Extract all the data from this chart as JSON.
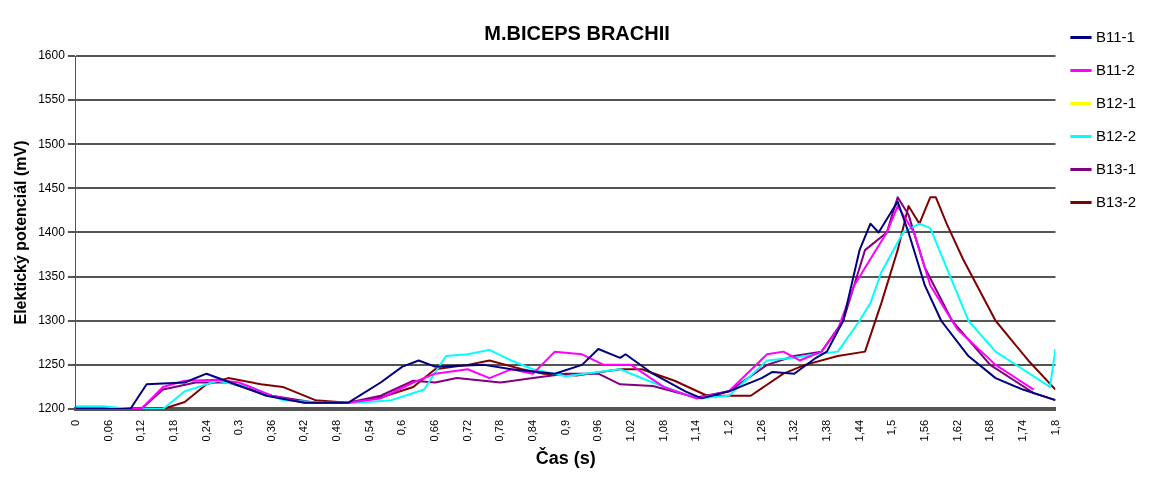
{
  "chart_data": {
    "type": "line",
    "title": "M.BICEPS BRACHII",
    "xlabel": "Čas (s)",
    "ylabel": "Elektický potenciál (mV)",
    "xlim": [
      0,
      1.8
    ],
    "xticks": [
      0,
      {
        "value": 0.06,
        "label": "0,06"
      },
      {
        "value": 0.12,
        "label": "0,12"
      },
      {
        "value": 0.18,
        "label": "0,18"
      },
      {
        "value": 0.24,
        "label": "0,24"
      },
      {
        "value": 0.3,
        "label": "0,3"
      },
      {
        "value": 0.36,
        "label": "0,36"
      },
      {
        "value": 0.42,
        "label": "0,42"
      },
      {
        "value": 0.48,
        "label": "0,48"
      },
      {
        "value": 0.54,
        "label": "0,54"
      },
      {
        "value": 0.6,
        "label": "0,6"
      },
      {
        "value": 0.66,
        "label": "0,66"
      },
      {
        "value": 0.72,
        "label": "0,72"
      },
      {
        "value": 0.78,
        "label": "0,78"
      },
      {
        "value": 0.84,
        "label": "0,84"
      },
      {
        "value": 0.9,
        "label": "0,9"
      },
      {
        "value": 0.96,
        "label": "0,96"
      },
      {
        "value": 1.02,
        "label": "1,02"
      },
      {
        "value": 1.08,
        "label": "1,08"
      },
      {
        "value": 1.14,
        "label": "1,14"
      },
      {
        "value": 1.2,
        "label": "1,2"
      },
      {
        "value": 1.26,
        "label": "1,26"
      },
      {
        "value": 1.32,
        "label": "1,32"
      },
      {
        "value": 1.38,
        "label": "1,38"
      },
      {
        "value": 1.44,
        "label": "1,44"
      },
      {
        "value": 1.5,
        "label": "1,5"
      },
      {
        "value": 1.56,
        "label": "1,56"
      },
      {
        "value": 1.62,
        "label": "1,62"
      },
      {
        "value": 1.68,
        "label": "1,68"
      },
      {
        "value": 1.74,
        "label": "1,74"
      },
      {
        "value": 1.8,
        "label": "1,8"
      }
    ],
    "ylim": [
      1200,
      1600
    ],
    "yticks": [
      1200,
      1250,
      1300,
      1350,
      1400,
      1450,
      1500,
      1550,
      1600
    ],
    "grid": "y",
    "legend": "right",
    "marker": "none",
    "line_style": "solid",
    "series": [
      {
        "name": "B11-1",
        "color": "#000080",
        "x": [
          0,
          0.1,
          0.13,
          0.2,
          0.24,
          0.35,
          0.42,
          0.5,
          0.56,
          0.6,
          0.63,
          0.66,
          0.75,
          0.8,
          0.88,
          0.93,
          0.96,
          1.0,
          1.01,
          1.06,
          1.12,
          1.15,
          1.2,
          1.26,
          1.28,
          1.32,
          1.36,
          1.38,
          1.41,
          1.44,
          1.46,
          1.475,
          1.49,
          1.51,
          1.53,
          1.56,
          1.59,
          1.64,
          1.69,
          1.74,
          1.8
        ],
        "values": [
          1200,
          1200,
          1228,
          1230,
          1240,
          1215,
          1207,
          1207,
          1230,
          1248,
          1255,
          1248,
          1250,
          1245,
          1240,
          1250,
          1268,
          1258,
          1262,
          1240,
          1220,
          1212,
          1220,
          1235,
          1242,
          1240,
          1258,
          1265,
          1300,
          1380,
          1410,
          1400,
          1415,
          1435,
          1400,
          1340,
          1300,
          1260,
          1235,
          1222,
          1210
        ]
      },
      {
        "name": "B11-2",
        "color": "#ff00ff",
        "x": [
          0,
          0.12,
          0.16,
          0.2,
          0.26,
          0.3,
          0.36,
          0.42,
          0.5,
          0.56,
          0.62,
          0.66,
          0.72,
          0.76,
          0.8,
          0.84,
          0.88,
          0.93,
          0.97,
          1.02,
          1.08,
          1.14,
          1.2,
          1.27,
          1.3,
          1.33,
          1.37,
          1.4,
          1.43,
          1.46,
          1.49,
          1.51,
          1.54,
          1.57,
          1.62,
          1.69,
          1.76
        ],
        "values": [
          1200,
          1200,
          1225,
          1232,
          1233,
          1230,
          1215,
          1207,
          1207,
          1212,
          1230,
          1240,
          1245,
          1235,
          1245,
          1240,
          1265,
          1262,
          1250,
          1250,
          1225,
          1212,
          1220,
          1262,
          1265,
          1255,
          1265,
          1290,
          1340,
          1370,
          1400,
          1430,
          1400,
          1340,
          1290,
          1250,
          1222
        ]
      },
      {
        "name": "B12-1",
        "color": "#ffff00"
      },
      {
        "name": "B12-2",
        "color": "#00ffff",
        "x": [
          0,
          0.05,
          0.1,
          0.16,
          0.2,
          0.26,
          0.32,
          0.38,
          0.46,
          0.52,
          0.58,
          0.64,
          0.68,
          0.72,
          0.76,
          0.8,
          0.84,
          0.9,
          0.96,
          1.0,
          1.06,
          1.14,
          1.2,
          1.27,
          1.32,
          1.36,
          1.4,
          1.44,
          1.46,
          1.48,
          1.52,
          1.55,
          1.57,
          1.6,
          1.64,
          1.69,
          1.74,
          1.79,
          1.8
        ],
        "values": [
          1203,
          1203,
          1200,
          1200,
          1220,
          1232,
          1225,
          1210,
          1207,
          1207,
          1210,
          1222,
          1260,
          1262,
          1267,
          1255,
          1245,
          1237,
          1242,
          1245,
          1230,
          1212,
          1215,
          1255,
          1258,
          1262,
          1265,
          1300,
          1320,
          1355,
          1400,
          1410,
          1405,
          1360,
          1300,
          1265,
          1245,
          1225,
          1268
        ]
      },
      {
        "name": "B13-1",
        "color": "#800080",
        "x": [
          0,
          0.12,
          0.16,
          0.22,
          0.28,
          0.36,
          0.44,
          0.5,
          0.56,
          0.62,
          0.66,
          0.7,
          0.78,
          0.84,
          0.9,
          0.96,
          1.0,
          1.06,
          1.14,
          1.2,
          1.27,
          1.32,
          1.37,
          1.41,
          1.45,
          1.49,
          1.51,
          1.53,
          1.56,
          1.61,
          1.68,
          1.76,
          1.8
        ],
        "values": [
          1200,
          1200,
          1222,
          1230,
          1230,
          1215,
          1207,
          1207,
          1215,
          1232,
          1230,
          1235,
          1230,
          1235,
          1240,
          1240,
          1228,
          1226,
          1213,
          1220,
          1250,
          1260,
          1265,
          1300,
          1380,
          1400,
          1440,
          1420,
          1360,
          1300,
          1250,
          1218,
          1210
        ]
      },
      {
        "name": "B13-2",
        "color": "#800000",
        "x": [
          0,
          0.16,
          0.2,
          0.24,
          0.28,
          0.34,
          0.38,
          0.44,
          0.5,
          0.56,
          0.62,
          0.66,
          0.72,
          0.76,
          0.82,
          0.86,
          0.92,
          1.0,
          1.04,
          1.1,
          1.16,
          1.24,
          1.3,
          1.34,
          1.4,
          1.45,
          1.48,
          1.51,
          1.53,
          1.55,
          1.57,
          1.58,
          1.6,
          1.63,
          1.69,
          1.75,
          1.8
        ],
        "values": [
          1200,
          1200,
          1208,
          1228,
          1235,
          1228,
          1225,
          1210,
          1207,
          1213,
          1225,
          1245,
          1250,
          1255,
          1245,
          1240,
          1238,
          1245,
          1245,
          1232,
          1215,
          1215,
          1240,
          1250,
          1260,
          1265,
          1320,
          1380,
          1430,
          1410,
          1440,
          1440,
          1410,
          1370,
          1300,
          1255,
          1222
        ]
      }
    ]
  }
}
